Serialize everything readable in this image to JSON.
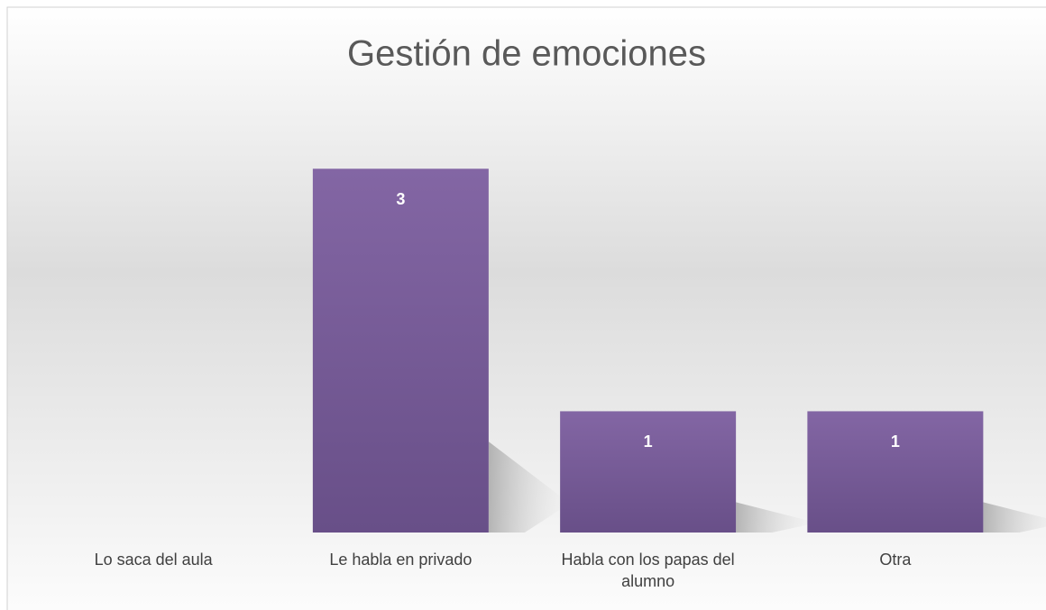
{
  "chart_data": {
    "type": "bar",
    "title": "Gestión de emociones",
    "categories": [
      "Lo saca del aula",
      "Le habla en privado",
      "Habla con los papas del alumno",
      "Otra"
    ],
    "values": [
      null,
      3,
      1,
      1
    ],
    "color": "#8064a2",
    "ylim": [
      0,
      3.5
    ]
  }
}
